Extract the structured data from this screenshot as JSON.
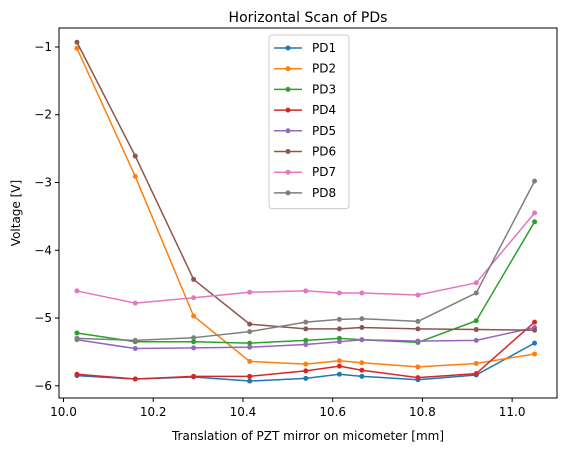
{
  "chart_data": {
    "type": "line",
    "title": "Horizontal Scan of PDs",
    "xlabel": "Translation of PZT mirror on micometer [mm]",
    "ylabel": "Voltage [V]",
    "xlim": [
      9.99,
      11.1
    ],
    "ylim": [
      -6.18,
      -0.72
    ],
    "xticks": [
      10.0,
      10.2,
      10.4,
      10.6,
      10.8,
      11.0
    ],
    "xtick_labels": [
      "10.0",
      "10.2",
      "10.4",
      "10.6",
      "10.8",
      "11.0"
    ],
    "yticks": [
      -1,
      -2,
      -3,
      -4,
      -5,
      -6
    ],
    "ytick_labels": [
      "−1",
      "−2",
      "−3",
      "−4",
      "−5",
      "−6"
    ],
    "grid": false,
    "legend_position": "top-center",
    "x": [
      10.03,
      10.16,
      10.29,
      10.415,
      10.54,
      10.615,
      10.665,
      10.79,
      10.92,
      11.05
    ],
    "series": [
      {
        "name": "PD1",
        "color": "#1f77b4",
        "values": [
          -5.85,
          -5.9,
          -5.87,
          -5.93,
          -5.89,
          -5.83,
          -5.86,
          -5.91,
          -5.84,
          -5.37
        ]
      },
      {
        "name": "PD2",
        "color": "#ff7f0e",
        "values": [
          -1.02,
          -2.91,
          -4.97,
          -5.64,
          -5.68,
          -5.63,
          -5.66,
          -5.72,
          -5.67,
          -5.53
        ]
      },
      {
        "name": "PD3",
        "color": "#2ca02c",
        "values": [
          -5.22,
          -5.35,
          -5.35,
          -5.37,
          -5.33,
          -5.3,
          -5.32,
          -5.36,
          -5.04,
          -3.58
        ]
      },
      {
        "name": "PD4",
        "color": "#d62728",
        "values": [
          -5.83,
          -5.9,
          -5.86,
          -5.86,
          -5.78,
          -5.71,
          -5.77,
          -5.88,
          -5.82,
          -5.06
        ]
      },
      {
        "name": "PD5",
        "color": "#9467bd",
        "values": [
          -5.32,
          -5.45,
          -5.44,
          -5.43,
          -5.39,
          -5.35,
          -5.32,
          -5.34,
          -5.33,
          -5.14
        ]
      },
      {
        "name": "PD6",
        "color": "#8c564b",
        "values": [
          -0.93,
          -2.61,
          -4.43,
          -5.09,
          -5.16,
          -5.16,
          -5.14,
          -5.16,
          -5.17,
          -5.18
        ]
      },
      {
        "name": "PD7",
        "color": "#e377c2",
        "values": [
          -4.6,
          -4.78,
          -4.7,
          -4.62,
          -4.6,
          -4.63,
          -4.63,
          -4.66,
          -4.48,
          -3.45
        ]
      },
      {
        "name": "PD8",
        "color": "#7f7f7f",
        "values": [
          -5.3,
          -5.33,
          -5.29,
          -5.2,
          -5.06,
          -5.02,
          -5.01,
          -5.05,
          -4.63,
          -2.98
        ]
      }
    ]
  }
}
